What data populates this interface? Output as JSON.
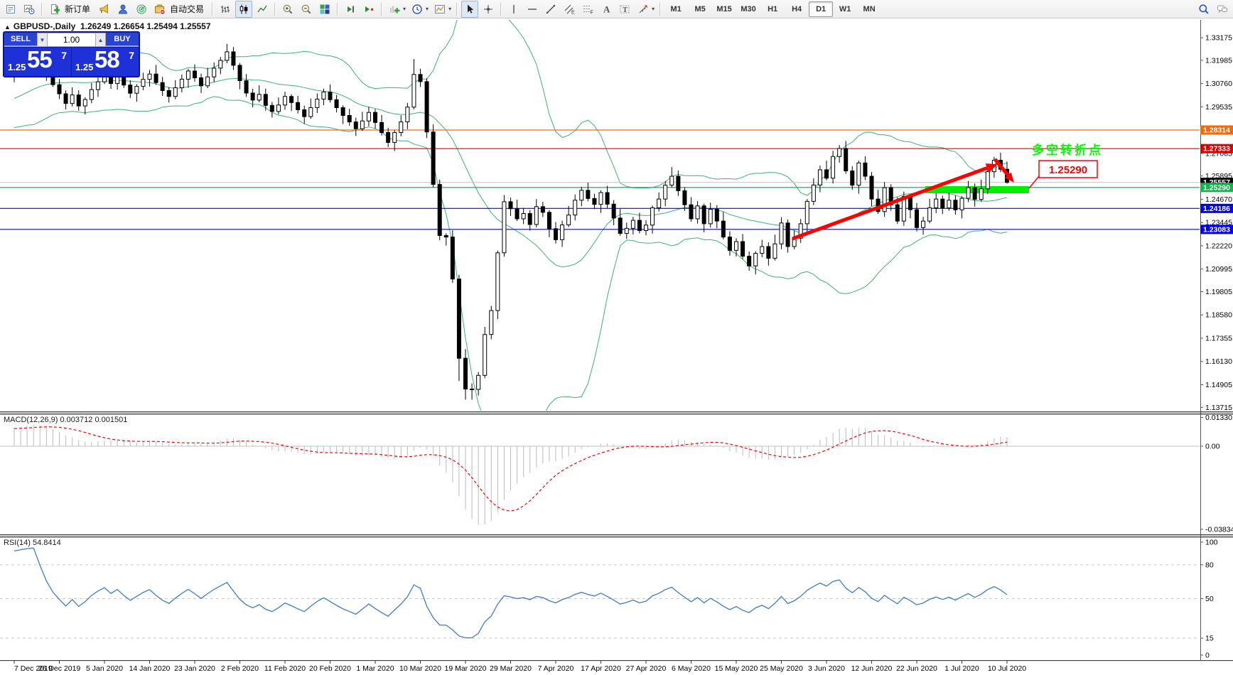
{
  "toolbar": {
    "left_icons": [
      {
        "name": "charts-list-icon"
      },
      {
        "name": "tester-icon"
      },
      {
        "sep": true
      },
      {
        "name": "new-order-icon",
        "label": "新订单"
      },
      {
        "name": "horn-icon"
      },
      {
        "name": "market-watch-icon"
      },
      {
        "name": "radar-icon"
      },
      {
        "name": "autotrading-icon",
        "label": "自动交易"
      },
      {
        "sep": true
      },
      {
        "name": "bar-chart-icon"
      },
      {
        "name": "candlestick-icon",
        "pressed": true
      },
      {
        "name": "line-chart-icon"
      },
      {
        "sep": true
      },
      {
        "name": "zoom-in-icon"
      },
      {
        "name": "zoom-out-icon"
      },
      {
        "name": "tile-windows-icon"
      },
      {
        "sep": true
      },
      {
        "name": "scroll-to-end-icon"
      },
      {
        "name": "chart-shift-icon"
      },
      {
        "sep": true
      },
      {
        "name": "indicators-icon",
        "caret": true
      },
      {
        "name": "periods-icon",
        "caret": true
      },
      {
        "name": "templates-icon",
        "caret": true
      },
      {
        "sep": true
      },
      {
        "name": "cursor-icon",
        "pressed": true
      },
      {
        "name": "crosshair-icon"
      },
      {
        "sep": true
      },
      {
        "name": "vertical-line-icon"
      },
      {
        "name": "horizontal-line-icon"
      },
      {
        "name": "trendline-icon"
      },
      {
        "name": "channel-icon"
      },
      {
        "name": "fibonacci-icon"
      },
      {
        "name": "text-icon"
      },
      {
        "name": "text-label-icon"
      },
      {
        "name": "arrows-icon",
        "caret": true
      },
      {
        "sep": true
      }
    ],
    "timeframes": [
      {
        "label": "M1"
      },
      {
        "label": "M5"
      },
      {
        "label": "M15"
      },
      {
        "label": "M30"
      },
      {
        "label": "H1"
      },
      {
        "label": "H4"
      },
      {
        "label": "D1",
        "active": true
      },
      {
        "label": "W1"
      },
      {
        "label": "MN"
      }
    ],
    "right_icons": [
      {
        "name": "search-icon"
      },
      {
        "name": "chat-icon"
      }
    ]
  },
  "symbol_header": {
    "collapse_arrow": "▲",
    "title": "GBPUSD-,Daily",
    "open": "1.26249",
    "high": "1.26654",
    "low": "1.25494",
    "close": "1.25557"
  },
  "trade_panel": {
    "sell_label": "SELL",
    "buy_label": "BUY",
    "volume": "1.00",
    "spin_down": "▼",
    "spin_up": "▲",
    "sell_price": {
      "prefix": "1.25",
      "big": "55",
      "sup": "7"
    },
    "buy_price": {
      "prefix": "1.25",
      "big": "58",
      "sup": "7"
    }
  },
  "macd_panel": {
    "label": "MACD(12,26,9)",
    "value1": "0.003712",
    "value2": "0.001501",
    "scale_max": "0.013301",
    "scale_zero": "0.00",
    "scale_min": "-0.038343"
  },
  "rsi_panel": {
    "label": "RSI(14)",
    "value": "54.8414",
    "levels": [
      100,
      80,
      50,
      15,
      0
    ],
    "dashed_levels": [
      80,
      50,
      15
    ]
  },
  "annotation": {
    "turning_point_text": "多空转折点",
    "price_callout": "1.25290"
  },
  "colors": {
    "bollinger": "#3CB371",
    "candle_up": "#FFFFFF",
    "candle_down": "#000000",
    "candle_outline": "#000000",
    "macd_hist": "#BBBBBB",
    "macd_signal": "#FF0000",
    "rsi_line": "#3E7BC4",
    "level_dash": "#C8C8C8",
    "highlight_rect": "#00EE00",
    "arrow": "#FF0000",
    "cjk_text": "#00FF00",
    "callout": "#FF0000"
  },
  "chart_data": {
    "type": "candlestick",
    "title": "GBPUSD-,Daily",
    "price_scale_ticks": [
      1.33175,
      1.31985,
      1.3076,
      1.29535,
      1.27085,
      1.25895,
      1.2467,
      1.23445,
      1.2222,
      1.20995,
      1.19805,
      1.1858,
      1.17355,
      1.1613,
      1.14905,
      1.13715
    ],
    "hlines": [
      {
        "price": 1.28314,
        "label": "1.28314",
        "color": "#FF6600",
        "label_bg": "#FF6600"
      },
      {
        "price": 1.27333,
        "label": "1.27333",
        "color": "#E00000",
        "label_bg": "#E00000"
      },
      {
        "price": 1.25557,
        "label": "1.25557",
        "color": "#C8C8C8",
        "label_bg": "#000000"
      },
      {
        "price": 1.2529,
        "label": "1.25290",
        "color": "#00A550",
        "label_bg": "#12B54A"
      },
      {
        "price": 1.24186,
        "label": "1.24186",
        "color": "#0000FF",
        "label_bg": "#0000FF"
      },
      {
        "price": 1.23083,
        "label": "1.23083",
        "color": "#0000FF",
        "label_bg": "#0000FF"
      }
    ],
    "x_labels": [
      "7 Dec 2019",
      "26 Dec 2019",
      "5 Jan 2020",
      "14 Jan 2020",
      "23 Jan 2020",
      "2 Feb 2020",
      "11 Feb 2020",
      "20 Feb 2020",
      "1 Mar 2020",
      "10 Mar 2020",
      "19 Mar 2020",
      "29 Mar 2020",
      "7 Apr 2020",
      "17 Apr 2020",
      "27 Apr 2020",
      "6 May 2020",
      "15 May 2020",
      "25 May 2020",
      "3 Jun 2020",
      "12 Jun 2020",
      "22 Jun 2020",
      "1 Jul 2020",
      "10 Jul 2020"
    ],
    "candles": {
      "pre_closes": [
        1.2592,
        1.2621,
        1.2618,
        1.2647,
        1.2644,
        1.2673,
        1.267,
        1.2699,
        1.2696,
        1.2725,
        1.2722,
        1.2751,
        1.2748,
        1.2777,
        1.2774,
        1.2803,
        1.28,
        1.2829,
        1.2826,
        1.2855,
        1.2852,
        1.2881,
        1.2878,
        1.2907,
        1.2904,
        1.2933,
        1.293,
        1.2959,
        1.2956,
        1.2985,
        1.2982,
        1.3011,
        1.3008,
        1.3037,
        1.3034,
        1.3063,
        1.306,
        1.3089,
        1.3086,
        1.3115
      ],
      "closes": [
        1.3138,
        1.3176,
        1.3215,
        1.3242,
        1.319,
        1.3128,
        1.307,
        1.3022,
        1.2971,
        1.3016,
        1.2958,
        1.2992,
        1.3044,
        1.3085,
        1.3118,
        1.3076,
        1.3114,
        1.3068,
        1.3025,
        1.3061,
        1.3098,
        1.3126,
        1.3081,
        1.3039,
        1.3008,
        1.3054,
        1.3099,
        1.3142,
        1.3106,
        1.3064,
        1.3111,
        1.3157,
        1.3198,
        1.3243,
        1.3172,
        1.3091,
        1.3026,
        1.2989,
        1.3019,
        1.2961,
        1.2929,
        1.2963,
        1.3008,
        1.2976,
        1.2938,
        1.2902,
        1.2949,
        1.2994,
        1.3031,
        1.2991,
        1.2949,
        1.2908,
        1.2874,
        1.2838,
        1.2879,
        1.2924,
        1.2871,
        1.2818,
        1.2766,
        1.2818,
        1.2874,
        1.2952,
        1.3124,
        1.3086,
        1.2821,
        1.2545,
        1.2276,
        1.2268,
        1.2047,
        1.163,
        1.1468,
        1.1466,
        1.154,
        1.1755,
        1.1881,
        1.2185,
        1.2454,
        1.2417,
        1.2364,
        1.2392,
        1.2334,
        1.2428,
        1.2398,
        1.2312,
        1.2254,
        1.2332,
        1.2384,
        1.2462,
        1.2514,
        1.2471,
        1.244,
        1.2502,
        1.2441,
        1.2368,
        1.2287,
        1.2314,
        1.2356,
        1.2302,
        1.2331,
        1.2422,
        1.2468,
        1.2541,
        1.2588,
        1.2512,
        1.2438,
        1.2364,
        1.2432,
        1.2338,
        1.2414,
        1.2352,
        1.2268,
        1.2198,
        1.2244,
        1.2167,
        1.2116,
        1.2182,
        1.2218,
        1.2156,
        1.2232,
        1.2342,
        1.2218,
        1.2262,
        1.2338,
        1.2456,
        1.2542,
        1.2622,
        1.2578,
        1.2692,
        1.2734,
        1.2616,
        1.2541,
        1.2658,
        1.2588,
        1.2468,
        1.2402,
        1.2528,
        1.2438,
        1.2352,
        1.2482,
        1.2412,
        1.2318,
        1.2352,
        1.2422,
        1.2468,
        1.2421,
        1.2462,
        1.2411,
        1.2472,
        1.2528,
        1.2466,
        1.2522,
        1.2612,
        1.2672,
        1.2625,
        1.25557
      ],
      "wick_cycle": [
        [
          0.0018,
          0.0032
        ],
        [
          0.004,
          0.0015
        ],
        [
          0.0025,
          0.0025
        ],
        [
          0.0012,
          0.0045
        ],
        [
          0.0035,
          0.002
        ],
        [
          0.0022,
          0.0038
        ],
        [
          0.0048,
          0.0012
        ],
        [
          0.003,
          0.0028
        ]
      ],
      "wick_overrides": {
        "2": {
          "h": 1.328
        },
        "33": {
          "h": 1.3285
        },
        "62": {
          "h": 1.3205
        },
        "69": {
          "l": 1.151
        },
        "70": {
          "l": 1.1412
        },
        "71": {
          "l": 1.1412
        }
      },
      "last_ohlc": {
        "o": 1.26249,
        "h": 1.26654,
        "l": 1.25494,
        "c": 1.25557
      }
    },
    "indicators": {
      "bollinger": {
        "period": 20,
        "deviation": 2
      },
      "macd": {
        "fast": 12,
        "slow": 26,
        "signal": 9
      },
      "rsi": {
        "period": 14
      }
    }
  }
}
